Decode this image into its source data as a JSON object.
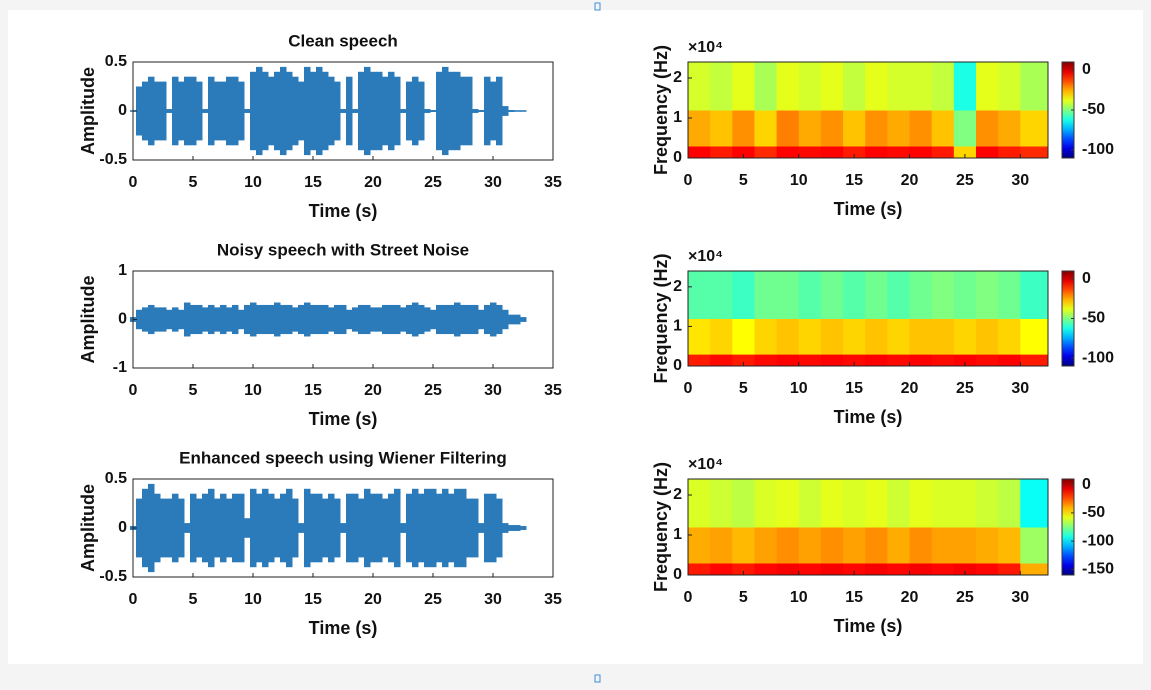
{
  "chart_data": [
    {
      "type": "envelope",
      "title": "Clean speech",
      "xlabel": "Time (s)",
      "ylabel": "Amplitude",
      "color": "#2b7bba",
      "xlim": [
        0,
        35
      ],
      "xticks": [
        0,
        5,
        10,
        15,
        20,
        25,
        30,
        35
      ],
      "ylim": [
        -0.5,
        0.5
      ],
      "yticks": [
        -0.5,
        0,
        0.5
      ],
      "x": [
        0,
        0.5,
        1,
        1.5,
        2,
        2.5,
        3,
        3.5,
        4,
        4.5,
        5,
        5.5,
        6,
        6.5,
        7,
        7.5,
        8,
        8.5,
        9,
        9.5,
        10,
        10.5,
        11,
        11.5,
        12,
        12.5,
        13,
        13.5,
        14,
        14.5,
        15,
        15.5,
        16,
        16.5,
        17,
        17.5,
        18,
        18.5,
        19,
        19.5,
        20,
        20.5,
        21,
        21.5,
        22,
        22.5,
        23,
        23.5,
        24,
        24.5,
        25,
        25.5,
        26,
        26.5,
        27,
        27.5,
        28,
        28.5,
        29,
        29.5,
        30,
        30.5,
        31,
        31.5,
        32,
        32.5
      ],
      "values": [
        0,
        0.25,
        0.3,
        0.35,
        0.3,
        0.3,
        0.02,
        0.35,
        0.3,
        0.35,
        0.35,
        0.3,
        0.02,
        0.35,
        0.3,
        0.3,
        0.35,
        0.35,
        0.3,
        0.02,
        0.4,
        0.45,
        0.4,
        0.35,
        0.4,
        0.45,
        0.4,
        0.35,
        0.3,
        0.45,
        0.4,
        0.45,
        0.4,
        0.35,
        0.3,
        0.02,
        0.35,
        0.02,
        0.4,
        0.45,
        0.4,
        0.4,
        0.35,
        0.4,
        0.35,
        0.02,
        0.3,
        0.35,
        0.3,
        0.02,
        0.01,
        0.4,
        0.45,
        0.4,
        0.4,
        0.35,
        0.35,
        0.02,
        0.01,
        0.35,
        0.3,
        0.35,
        0.05,
        0.01,
        0,
        0
      ]
    },
    {
      "type": "envelope",
      "title": "Noisy speech with  Street Noise",
      "xlabel": "Time (s)",
      "ylabel": "Amplitude",
      "color": "#2b7bba",
      "xlim": [
        0,
        35
      ],
      "xticks": [
        0,
        5,
        10,
        15,
        20,
        25,
        30,
        35
      ],
      "ylim": [
        -1,
        1
      ],
      "yticks": [
        -1,
        0,
        1
      ],
      "x": [
        0,
        0.5,
        1,
        1.5,
        2,
        2.5,
        3,
        3.5,
        4,
        4.5,
        5,
        5.5,
        6,
        6.5,
        7,
        7.5,
        8,
        8.5,
        9,
        9.5,
        10,
        10.5,
        11,
        11.5,
        12,
        12.5,
        13,
        13.5,
        14,
        14.5,
        15,
        15.5,
        16,
        16.5,
        17,
        17.5,
        18,
        18.5,
        19,
        19.5,
        20,
        20.5,
        21,
        21.5,
        22,
        22.5,
        23,
        23.5,
        24,
        24.5,
        25,
        25.5,
        26,
        26.5,
        27,
        27.5,
        28,
        28.5,
        29,
        29.5,
        30,
        30.5,
        31,
        31.5,
        32,
        32.5
      ],
      "values": [
        0.05,
        0.2,
        0.25,
        0.3,
        0.25,
        0.25,
        0.2,
        0.25,
        0.2,
        0.35,
        0.3,
        0.3,
        0.25,
        0.3,
        0.25,
        0.3,
        0.25,
        0.3,
        0.2,
        0.3,
        0.35,
        0.3,
        0.3,
        0.3,
        0.35,
        0.3,
        0.3,
        0.25,
        0.3,
        0.35,
        0.3,
        0.3,
        0.3,
        0.25,
        0.3,
        0.3,
        0.2,
        0.25,
        0.3,
        0.3,
        0.25,
        0.25,
        0.3,
        0.3,
        0.3,
        0.25,
        0.3,
        0.35,
        0.3,
        0.25,
        0.2,
        0.3,
        0.3,
        0.3,
        0.35,
        0.3,
        0.3,
        0.3,
        0.2,
        0.3,
        0.35,
        0.3,
        0.2,
        0.1,
        0.1,
        0.05
      ]
    },
    {
      "type": "envelope",
      "title": "Enhanced speech using Wiener Filtering",
      "xlabel": "Time (s)",
      "ylabel": "Amplitude",
      "color": "#2b7bba",
      "xlim": [
        0,
        35
      ],
      "xticks": [
        0,
        5,
        10,
        15,
        20,
        25,
        30,
        35
      ],
      "ylim": [
        -0.5,
        0.5
      ],
      "yticks": [
        -0.5,
        0,
        0.5
      ],
      "x": [
        0,
        0.5,
        1,
        1.5,
        2,
        2.5,
        3,
        3.5,
        4,
        4.5,
        5,
        5.5,
        6,
        6.5,
        7,
        7.5,
        8,
        8.5,
        9,
        9.5,
        10,
        10.5,
        11,
        11.5,
        12,
        12.5,
        13,
        13.5,
        14,
        14.5,
        15,
        15.5,
        16,
        16.5,
        17,
        17.5,
        18,
        18.5,
        19,
        19.5,
        20,
        20.5,
        21,
        21.5,
        22,
        22.5,
        23,
        23.5,
        24,
        24.5,
        25,
        25.5,
        26,
        26.5,
        27,
        27.5,
        28,
        28.5,
        29,
        29.5,
        30,
        30.5,
        31,
        31.5,
        32,
        32.5
      ],
      "values": [
        0.02,
        0.3,
        0.4,
        0.45,
        0.35,
        0.3,
        0.3,
        0.35,
        0.3,
        0.05,
        0.35,
        0.3,
        0.35,
        0.4,
        0.3,
        0.35,
        0.3,
        0.35,
        0.35,
        0.1,
        0.4,
        0.35,
        0.4,
        0.35,
        0.3,
        0.35,
        0.4,
        0.3,
        0.05,
        0.4,
        0.35,
        0.35,
        0.3,
        0.35,
        0.3,
        0.05,
        0.35,
        0.35,
        0.3,
        0.4,
        0.35,
        0.35,
        0.3,
        0.35,
        0.4,
        0.05,
        0.35,
        0.4,
        0.35,
        0.4,
        0.4,
        0.35,
        0.4,
        0.35,
        0.4,
        0.4,
        0.3,
        0.3,
        0.05,
        0.35,
        0.35,
        0.3,
        0.05,
        0.03,
        0.03,
        0.02
      ]
    },
    {
      "type": "heatmap",
      "xlabel": "Time (s)",
      "ylabel": "Frequency (Hz)",
      "y_multiplier": "×10⁴",
      "xlim": [
        0,
        32.5
      ],
      "xticks": [
        0,
        5,
        10,
        15,
        20,
        25,
        30
      ],
      "ylim": [
        0,
        2.4
      ],
      "yticks": [
        0,
        1,
        2
      ],
      "x_bins": [
        0,
        2,
        4,
        6,
        8,
        10,
        12,
        14,
        16,
        18,
        20,
        22,
        24,
        26,
        28,
        30,
        32.5
      ],
      "y_bins": [
        0,
        0.3,
        1.2,
        2.4
      ],
      "clim": [
        -110,
        10
      ],
      "cticks": [
        0,
        -50,
        -100
      ],
      "values": [
        [
          -5,
          -8,
          -5,
          -10,
          -5,
          -6,
          -5,
          -8,
          -5,
          -6,
          -5,
          -8,
          -30,
          -5,
          -8,
          -10
        ],
        [
          -25,
          -28,
          -22,
          -30,
          -20,
          -25,
          -22,
          -28,
          -22,
          -25,
          -22,
          -28,
          -50,
          -22,
          -25,
          -30
        ],
        [
          -40,
          -42,
          -38,
          -45,
          -38,
          -40,
          -38,
          -42,
          -38,
          -40,
          -40,
          -42,
          -62,
          -38,
          -40,
          -45
        ]
      ]
    },
    {
      "type": "heatmap",
      "xlabel": "Time (s)",
      "ylabel": "Frequency (Hz)",
      "y_multiplier": "×10⁴",
      "xlim": [
        0,
        32.5
      ],
      "xticks": [
        0,
        5,
        10,
        15,
        20,
        25,
        30
      ],
      "ylim": [
        0,
        2.4
      ],
      "yticks": [
        0,
        1,
        2
      ],
      "x_bins": [
        0,
        2,
        4,
        6,
        8,
        10,
        12,
        14,
        16,
        18,
        20,
        22,
        24,
        26,
        28,
        30,
        32.5
      ],
      "y_bins": [
        0,
        0.3,
        1.2,
        2.4
      ],
      "clim": [
        -110,
        10
      ],
      "cticks": [
        0,
        -50,
        -100
      ],
      "values": [
        [
          -8,
          -6,
          -8,
          -6,
          -5,
          -6,
          -5,
          -6,
          -5,
          -6,
          -5,
          -6,
          -5,
          -6,
          -5,
          -8
        ],
        [
          -32,
          -30,
          -35,
          -30,
          -28,
          -30,
          -28,
          -30,
          -28,
          -30,
          -28,
          -28,
          -30,
          -28,
          -30,
          -35
        ],
        [
          -55,
          -55,
          -58,
          -52,
          -52,
          -55,
          -52,
          -55,
          -52,
          -55,
          -52,
          -50,
          -52,
          -50,
          -52,
          -58
        ]
      ]
    },
    {
      "type": "heatmap",
      "xlabel": "Time (s)",
      "ylabel": "Frequency (Hz)",
      "y_multiplier": "×10⁴",
      "xlim": [
        0,
        32.5
      ],
      "xticks": [
        0,
        5,
        10,
        15,
        20,
        25,
        30
      ],
      "ylim": [
        0,
        2.4
      ],
      "yticks": [
        0,
        1,
        2
      ],
      "x_bins": [
        0,
        2,
        4,
        6,
        8,
        10,
        12,
        14,
        16,
        18,
        20,
        22,
        24,
        26,
        28,
        30,
        32.5
      ],
      "y_bins": [
        0,
        0.3,
        1.2,
        2.4
      ],
      "clim": [
        -160,
        10
      ],
      "cticks": [
        0,
        -50,
        -100,
        -150
      ],
      "values": [
        [
          -15,
          -12,
          -15,
          -12,
          -10,
          -12,
          -10,
          -12,
          -10,
          -12,
          -10,
          -12,
          -10,
          -12,
          -15,
          -40
        ],
        [
          -40,
          -38,
          -42,
          -38,
          -35,
          -38,
          -35,
          -38,
          -35,
          -40,
          -35,
          -38,
          -38,
          -40,
          -42,
          -70
        ],
        [
          -60,
          -62,
          -65,
          -60,
          -58,
          -62,
          -58,
          -60,
          -58,
          -62,
          -58,
          -60,
          -60,
          -62,
          -65,
          -95
        ]
      ]
    }
  ]
}
